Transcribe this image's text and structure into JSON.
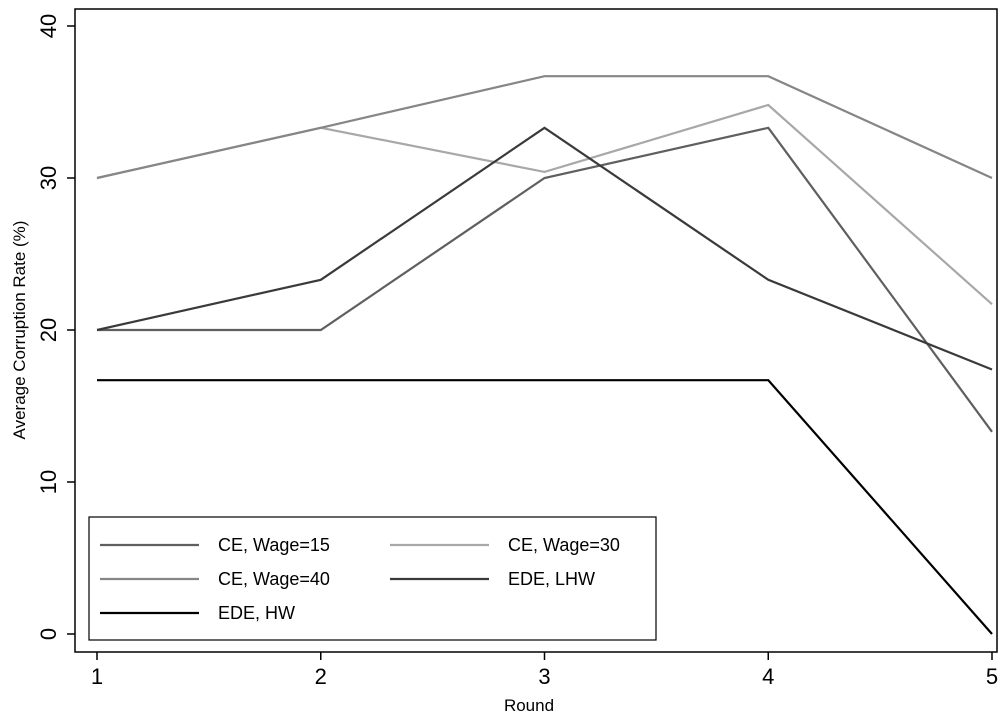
{
  "chart_data": {
    "type": "line",
    "xlabel": "Round",
    "ylabel": "Average Corruption Rate (%)",
    "x": [
      1,
      2,
      3,
      4,
      5
    ],
    "xticks": [
      "1",
      "2",
      "3",
      "4",
      "5"
    ],
    "yticks": [
      "0",
      "10",
      "20",
      "30",
      "40"
    ],
    "xlim": [
      1,
      5
    ],
    "ylim": [
      0,
      40
    ],
    "grid": false,
    "legend_position": "bottom-left",
    "series": [
      {
        "name": "CE, Wage=15",
        "color": "#5f5f5f",
        "values": [
          20,
          20,
          30,
          33.3,
          13.3
        ]
      },
      {
        "name": "CE, Wage=30",
        "color": "#a8a8a8",
        "values": [
          30,
          33.3,
          30.4,
          34.8,
          21.7
        ]
      },
      {
        "name": "CE, Wage=40",
        "color": "#868686",
        "values": [
          30,
          33.3,
          36.7,
          36.7,
          30
        ]
      },
      {
        "name": "EDE, LHW",
        "color": "#3a3a3a",
        "values": [
          20,
          23.3,
          33.3,
          23.3,
          17.4
        ]
      },
      {
        "name": "EDE, HW",
        "color": "#000000",
        "values": [
          16.7,
          16.7,
          16.7,
          16.7,
          0
        ]
      }
    ]
  }
}
